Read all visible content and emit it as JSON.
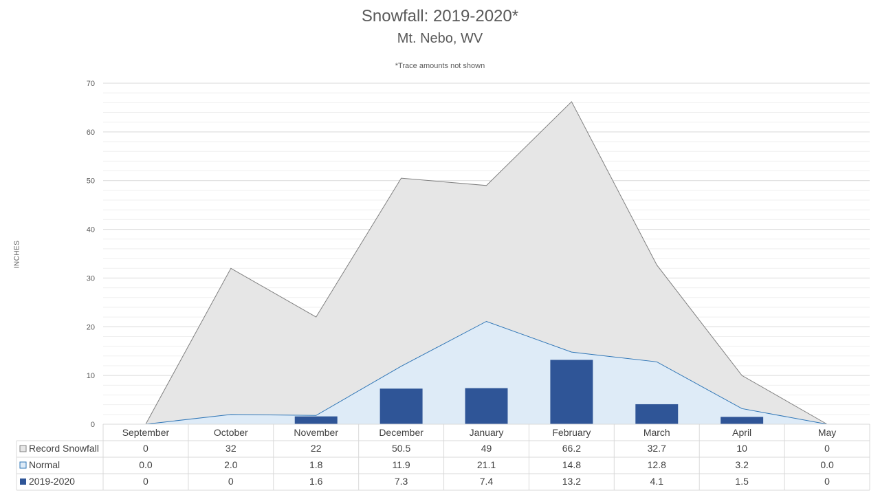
{
  "chart_data": {
    "type": "area",
    "title": "Snowfall: 2019-2020*",
    "subtitle": "Mt. Nebo, WV",
    "note": "*Trace amounts not shown",
    "ylabel": "INCHES",
    "ylim": [
      0,
      70
    ],
    "yticks": [
      0,
      10,
      20,
      30,
      40,
      50,
      60,
      70
    ],
    "grid": true,
    "categories": [
      "September",
      "October",
      "November",
      "December",
      "January",
      "February",
      "March",
      "April",
      "May"
    ],
    "series": [
      {
        "name": "Record Snowfall",
        "kind": "area",
        "color": "#e6e6e6",
        "line_color": "#7f7f7f",
        "values": [
          0,
          32,
          22,
          50.5,
          49,
          66.2,
          32.7,
          10,
          0
        ],
        "labels": [
          "0",
          "32",
          "22",
          "50.5",
          "49",
          "66.2",
          "32.7",
          "10",
          "0"
        ]
      },
      {
        "name": "Normal",
        "kind": "area",
        "color": "#deebf7",
        "line_color": "#2e75b6",
        "values": [
          0.0,
          2.0,
          1.8,
          11.9,
          21.1,
          14.8,
          12.8,
          3.2,
          0.0
        ],
        "labels": [
          "0.0",
          "2.0",
          "1.8",
          "11.9",
          "21.1",
          "14.8",
          "12.8",
          "3.2",
          "0.0"
        ]
      },
      {
        "name": "2019-2020",
        "kind": "bar",
        "color": "#2f5597",
        "values": [
          0,
          0,
          1.6,
          7.3,
          7.4,
          13.2,
          4.1,
          1.5,
          0
        ],
        "labels": [
          "0",
          "0",
          "1.6",
          "7.3",
          "7.4",
          "13.2",
          "4.1",
          "1.5",
          "0"
        ]
      }
    ]
  }
}
